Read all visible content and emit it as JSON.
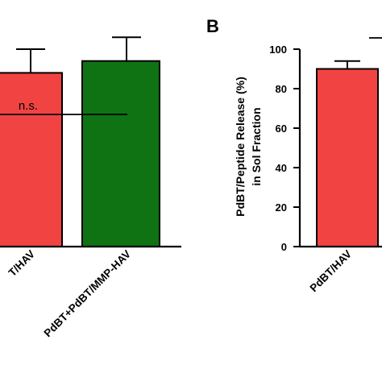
{
  "colors": {
    "red": "#f24343",
    "green": "#0f7314",
    "axis": "#000000"
  },
  "chart_data": [
    {
      "type": "bar",
      "panel": "",
      "title": "",
      "ylabel": "",
      "categories": [
        "PdBT/HAV",
        "PdBT+PdBT/MMP-HAV"
      ],
      "display_labels": [
        "T/HAV",
        "PdBT+PdBT/MMP-HAV"
      ],
      "values": [
        88,
        94
      ],
      "errors": [
        12,
        12
      ],
      "bar_colors": [
        "#f24343",
        "#0f7314"
      ],
      "ylim": [
        0,
        100
      ],
      "annotations": [
        {
          "text": "n.s.",
          "between": [
            0,
            1
          ]
        }
      ]
    },
    {
      "type": "bar",
      "panel": "B",
      "title": "",
      "ylabel_line1": "PdBT/Peptide Release (%)",
      "ylabel_line2": "in Sol Fraction",
      "categories": [
        "PdBT/HAV"
      ],
      "values": [
        90
      ],
      "errors": [
        4
      ],
      "bar_colors": [
        "#f24343"
      ],
      "ylim": [
        0,
        100
      ],
      "yticks": [
        0,
        20,
        40,
        60,
        80,
        100
      ]
    }
  ]
}
